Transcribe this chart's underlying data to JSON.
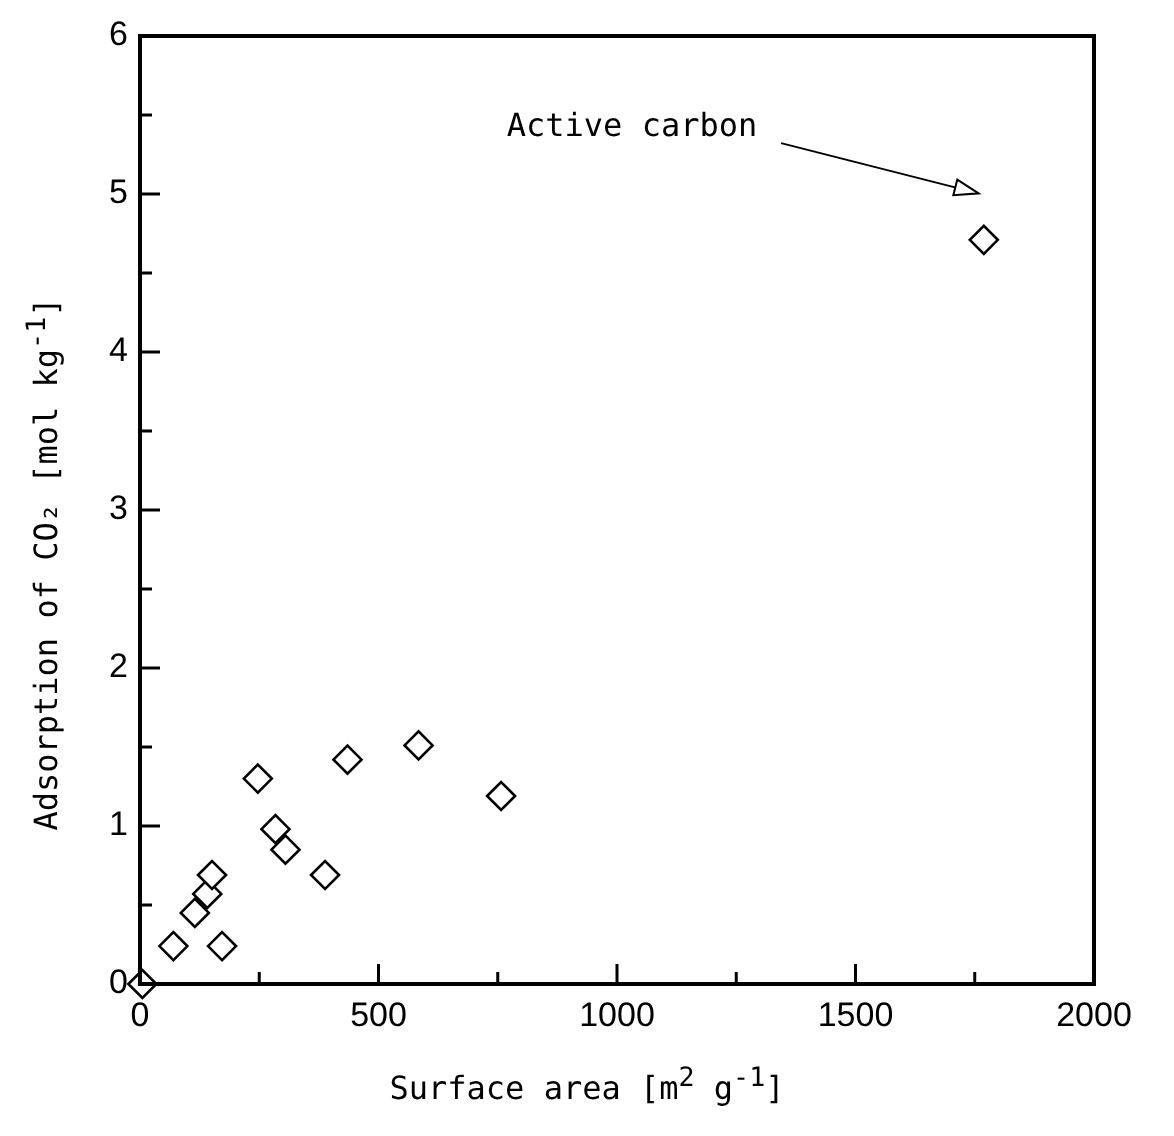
{
  "chart_data": {
    "type": "scatter",
    "xlabel": "Surface area [m$^{2}$ g$^{-1}$]",
    "ylabel": "Adsorption of CO₂  [mol kg$^{-1}$]",
    "x": [
      5,
      70,
      115,
      141,
      151,
      172,
      247,
      284,
      305,
      388,
      435,
      584,
      757,
      1769
    ],
    "values": [
      0,
      0.24,
      0.45,
      0.57,
      0.69,
      0.24,
      1.3,
      0.98,
      0.85,
      0.69,
      1.42,
      1.51,
      1.19,
      4.71
    ],
    "color": "#000000",
    "marker": "diamond",
    "grid": false,
    "xlim": [
      0,
      2000
    ],
    "xticks": [
      0,
      {
        "value": 250,
        "label": null
      },
      500,
      {
        "value": 750,
        "label": null
      },
      1000,
      {
        "value": 1250,
        "label": null
      },
      1500,
      {
        "value": 1750,
        "label": null
      },
      2000
    ],
    "ylim": [
      0,
      6
    ],
    "yticks": [
      0,
      {
        "value": 0.5,
        "label": null
      },
      1,
      {
        "value": 1.5,
        "label": null
      },
      2,
      {
        "value": 2.5,
        "label": null
      },
      3,
      {
        "value": 3.5,
        "label": null
      },
      4,
      {
        "value": 4.5,
        "label": null
      },
      5,
      {
        "value": 5.5,
        "label": null
      },
      6
    ],
    "annotations": [
      "Active carbon"
    ]
  }
}
